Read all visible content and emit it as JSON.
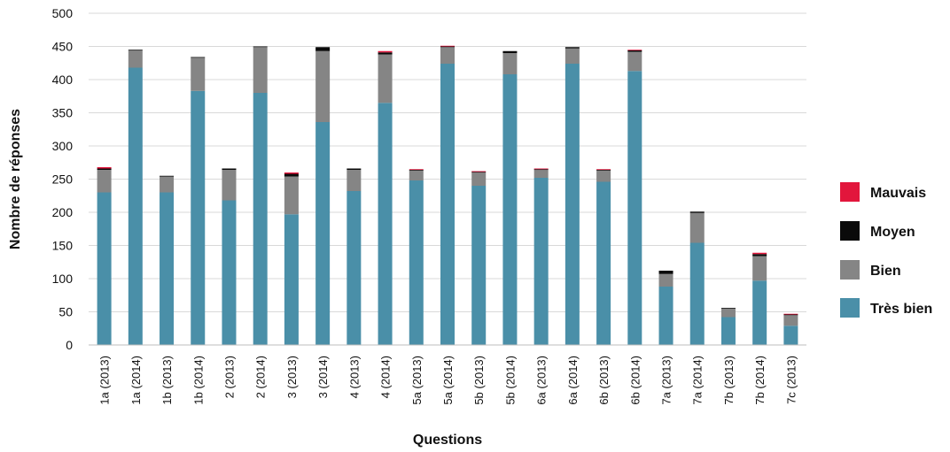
{
  "chart_data": {
    "type": "bar",
    "stacked": true,
    "title": "",
    "xlabel": "Questions",
    "ylabel": "Nombre de réponses",
    "ylim": [
      0,
      500
    ],
    "yticks": [
      0,
      50,
      100,
      150,
      200,
      250,
      300,
      350,
      400,
      450,
      500
    ],
    "grid": true,
    "legend_position": "right",
    "categories": [
      "1a (2013)",
      "1a (2014)",
      "1b (2013)",
      "1b (2014)",
      "2 (2013)",
      "2 (2014)",
      "3 (2013)",
      "3 (2014)",
      "4 (2013)",
      "4 (2014)",
      "5a (2013)",
      "5a (2014)",
      "5b (2013)",
      "5b (2014)",
      "6a (2013)",
      "6a (2014)",
      "6b (2013)",
      "6b (2014)",
      "7a (2013)",
      "7a (2014)",
      "7b (2013)",
      "7b (2014)",
      "7c (2013)"
    ],
    "series": [
      {
        "name": "Très bien",
        "color": "#4a8fa8",
        "values": [
          230,
          418,
          230,
          383,
          218,
          380,
          197,
          336,
          232,
          365,
          248,
          424,
          240,
          408,
          252,
          424,
          246,
          413,
          88,
          154,
          42,
          97,
          29
        ]
      },
      {
        "name": "Bien",
        "color": "#858585",
        "values": [
          34,
          26,
          24,
          50,
          46,
          69,
          57,
          107,
          32,
          73,
          15,
          25,
          20,
          32,
          12,
          23,
          17,
          29,
          19,
          45,
          13,
          37,
          16
        ]
      },
      {
        "name": "Moyen",
        "color": "#0a0a0a",
        "values": [
          2,
          1,
          1,
          1,
          2,
          1,
          4,
          6,
          2,
          3,
          1,
          1,
          1,
          3,
          1,
          2,
          1,
          2,
          5,
          2,
          1,
          3,
          1
        ]
      },
      {
        "name": "Mauvais",
        "color": "#e2163c",
        "values": [
          2,
          0,
          0,
          0,
          0,
          0,
          2,
          0,
          0,
          2,
          1,
          1,
          1,
          0,
          1,
          0,
          1,
          1,
          0,
          0,
          0,
          2,
          1
        ]
      }
    ],
    "legend_order": [
      "Mauvais",
      "Moyen",
      "Bien",
      "Très bien"
    ]
  }
}
